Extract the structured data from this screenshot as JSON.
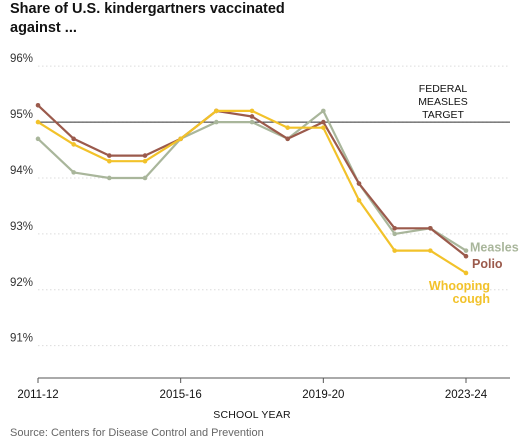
{
  "chart_data": {
    "type": "line",
    "title": "Share of U.S. kindergartners vaccinated against ...",
    "xlabel": "SCHOOL YEAR",
    "ylabel": "",
    "source": "Source: Centers for Disease Control and Prevention",
    "x": [
      "2011-12",
      "2012-13",
      "2013-14",
      "2014-15",
      "2015-16",
      "2016-17",
      "2017-18",
      "2018-19",
      "2019-20",
      "2020-21",
      "2021-22",
      "2022-23",
      "2023-24"
    ],
    "x_tick_labels": [
      "2011-12",
      "2015-16",
      "2019-20",
      "2023-24"
    ],
    "ylim": [
      90.6,
      96.2
    ],
    "y_ticks": [
      91,
      92,
      93,
      94,
      95,
      96
    ],
    "y_tick_labels": [
      "91%",
      "92%",
      "93%",
      "94%",
      "95%",
      "96%"
    ],
    "grid": true,
    "reference_line": {
      "value": 95,
      "label_lines": [
        "FEDERAL",
        "MEASLES",
        "TARGET"
      ]
    },
    "series": [
      {
        "name": "Measles",
        "label_lines": [
          "Measles"
        ],
        "color": "#a9b69b",
        "values": [
          94.7,
          94.1,
          94.0,
          94.0,
          94.7,
          95.0,
          95.0,
          94.7,
          95.2,
          93.9,
          93.0,
          93.1,
          92.7
        ]
      },
      {
        "name": "Polio",
        "label_lines": [
          "Polio"
        ],
        "color": "#9b5a4c",
        "values": [
          95.3,
          94.7,
          94.4,
          94.4,
          94.7,
          95.2,
          95.1,
          94.7,
          95.0,
          93.9,
          93.1,
          93.1,
          92.6
        ]
      },
      {
        "name": "Whooping cough",
        "label_lines": [
          "Whooping",
          "cough"
        ],
        "color": "#f2c22a",
        "values": [
          95.0,
          94.6,
          94.3,
          94.3,
          94.7,
          95.2,
          95.2,
          94.9,
          94.9,
          93.6,
          92.7,
          92.7,
          92.3
        ]
      }
    ]
  }
}
